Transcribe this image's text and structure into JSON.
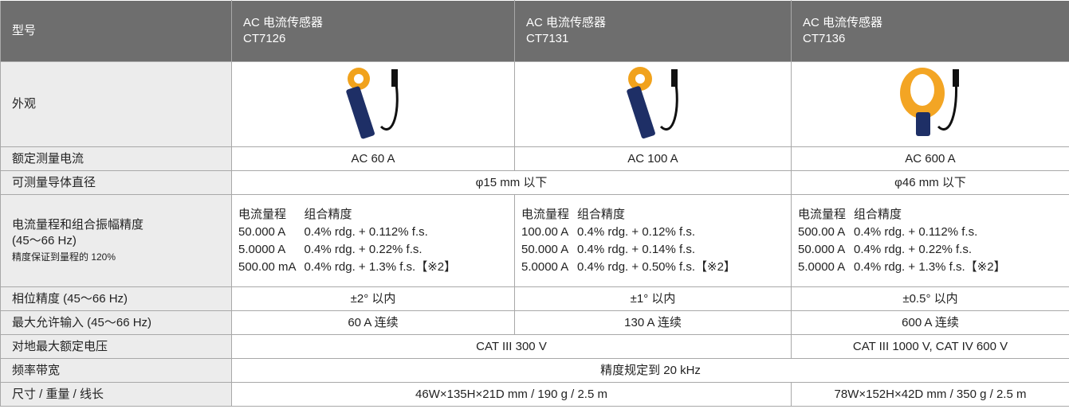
{
  "header": {
    "label": "型号",
    "models": [
      {
        "name": "AC 电流传感器",
        "code": "CT7126"
      },
      {
        "name": "AC 电流传感器",
        "code": "CT7131"
      },
      {
        "name": "AC 电流传感器",
        "code": "CT7136"
      }
    ]
  },
  "appearance": {
    "label": "外观"
  },
  "rated_current": {
    "label": "额定测量电流",
    "values": [
      "AC 60 A",
      "AC 100 A",
      "AC 600 A"
    ]
  },
  "conductor_diameter": {
    "label": "可测量导体直径",
    "values": [
      "φ15 mm 以下",
      "φ46 mm 以下"
    ]
  },
  "accuracy": {
    "label": [
      "电流量程和组合振幅精度",
      "(45～66 Hz)"
    ],
    "note": "精度保证到量程的 120%",
    "columns": [
      "电流量程",
      "组合精度"
    ],
    "ranges": [
      [
        [
          "50.000 A",
          "0.4% rdg. + 0.112% f.s."
        ],
        [
          "5.0000 A",
          "0.4% rdg. + 0.22% f.s."
        ],
        [
          "500.00 mA",
          "0.4% rdg. + 1.3% f.s.【※2】"
        ]
      ],
      [
        [
          "100.00 A",
          "0.4% rdg. + 0.12% f.s."
        ],
        [
          "50.000 A",
          "0.4% rdg. + 0.14% f.s."
        ],
        [
          "5.0000 A",
          "0.4% rdg. + 0.50% f.s.【※2】"
        ]
      ],
      [
        [
          "500.00 A",
          "0.4% rdg. + 0.112% f.s."
        ],
        [
          "50.000 A",
          "0.4% rdg. + 0.22% f.s."
        ],
        [
          "5.0000 A",
          "0.4% rdg. + 1.3% f.s.【※2】"
        ]
      ]
    ]
  },
  "phase_accuracy": {
    "label": "相位精度 (45～66 Hz)",
    "values": [
      "±2° 以内",
      "±1° 以内",
      "±0.5° 以内"
    ]
  },
  "max_input": {
    "label": "最大允许输入 (45～66 Hz)",
    "values": [
      "60 A 连续",
      "130 A 连续",
      "600 A 连续"
    ]
  },
  "max_voltage": {
    "label": "对地最大额定电压",
    "values": [
      "CAT III 300 V",
      "CAT III 1000 V, CAT IV 600 V"
    ]
  },
  "bandwidth": {
    "label": "频率带宽",
    "values": [
      "精度规定到 20 kHz"
    ]
  },
  "dimensions": {
    "label": "尺寸 / 重量 / 线长",
    "values": [
      "46W×135H×21D mm / 190 g / 2.5 m",
      "78W×152H×42D mm / 350 g / 2.5 m"
    ]
  }
}
